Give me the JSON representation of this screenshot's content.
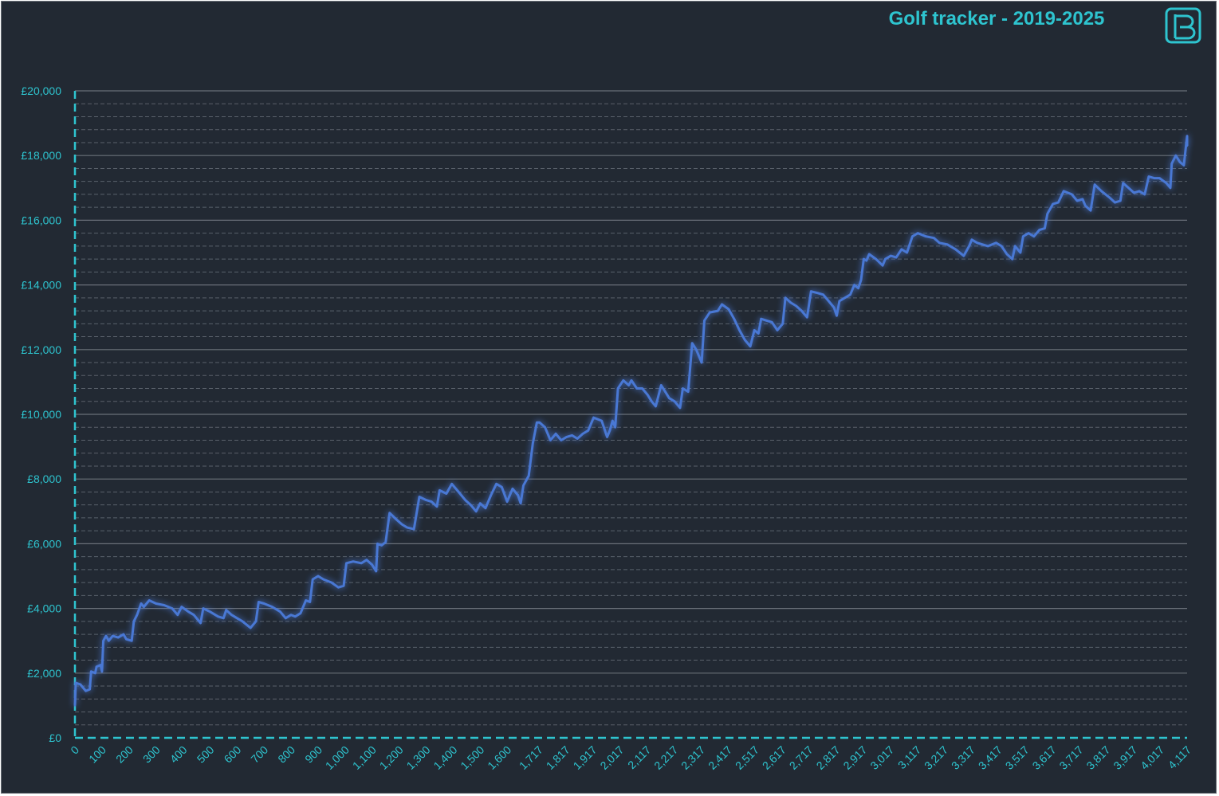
{
  "chart_data": {
    "type": "line",
    "title": "Golf tracker - 2019-2025",
    "xlabel": "",
    "ylabel": "",
    "xlim": [
      0,
      4117
    ],
    "ylim": [
      0,
      20000
    ],
    "grid": true,
    "legend": "none",
    "y_ticks": [
      {
        "value": 0,
        "label": "£0"
      },
      {
        "value": 2000,
        "label": "£2,000"
      },
      {
        "value": 4000,
        "label": "£4,000"
      },
      {
        "value": 6000,
        "label": "£6,000"
      },
      {
        "value": 8000,
        "label": "£8,000"
      },
      {
        "value": 10000,
        "label": "£10,000"
      },
      {
        "value": 12000,
        "label": "£12,000"
      },
      {
        "value": 14000,
        "label": "£14,000"
      },
      {
        "value": 16000,
        "label": "£16,000"
      },
      {
        "value": 18000,
        "label": "£18,000"
      },
      {
        "value": 20000,
        "label": "£20,000"
      }
    ],
    "x_ticks": [
      {
        "value": 0,
        "label": "0"
      },
      {
        "value": 100,
        "label": "100"
      },
      {
        "value": 200,
        "label": "200"
      },
      {
        "value": 300,
        "label": "300"
      },
      {
        "value": 400,
        "label": "400"
      },
      {
        "value": 500,
        "label": "500"
      },
      {
        "value": 600,
        "label": "600"
      },
      {
        "value": 700,
        "label": "700"
      },
      {
        "value": 800,
        "label": "800"
      },
      {
        "value": 900,
        "label": "900"
      },
      {
        "value": 1000,
        "label": "1,000"
      },
      {
        "value": 1100,
        "label": "1,100"
      },
      {
        "value": 1200,
        "label": "1,200"
      },
      {
        "value": 1300,
        "label": "1,300"
      },
      {
        "value": 1400,
        "label": "1,400"
      },
      {
        "value": 1500,
        "label": "1,500"
      },
      {
        "value": 1600,
        "label": "1,600"
      },
      {
        "value": 1717,
        "label": "1,717"
      },
      {
        "value": 1817,
        "label": "1,817"
      },
      {
        "value": 1917,
        "label": "1,917"
      },
      {
        "value": 2017,
        "label": "2,017"
      },
      {
        "value": 2117,
        "label": "2,117"
      },
      {
        "value": 2217,
        "label": "2,217"
      },
      {
        "value": 2317,
        "label": "2,317"
      },
      {
        "value": 2417,
        "label": "2,417"
      },
      {
        "value": 2517,
        "label": "2,517"
      },
      {
        "value": 2617,
        "label": "2,617"
      },
      {
        "value": 2717,
        "label": "2,717"
      },
      {
        "value": 2817,
        "label": "2,817"
      },
      {
        "value": 2917,
        "label": "2,917"
      },
      {
        "value": 3017,
        "label": "3,017"
      },
      {
        "value": 3117,
        "label": "3,117"
      },
      {
        "value": 3217,
        "label": "3,217"
      },
      {
        "value": 3317,
        "label": "3,317"
      },
      {
        "value": 3417,
        "label": "3,417"
      },
      {
        "value": 3517,
        "label": "3,517"
      },
      {
        "value": 3617,
        "label": "3,617"
      },
      {
        "value": 3717,
        "label": "3,717"
      },
      {
        "value": 3817,
        "label": "3,817"
      },
      {
        "value": 3917,
        "label": "3,917"
      },
      {
        "value": 4017,
        "label": "4,017"
      },
      {
        "value": 4117,
        "label": "4,117"
      }
    ],
    "series": [
      {
        "color": "#4a78d4",
        "points": [
          [
            0,
            1000
          ],
          [
            3,
            1700
          ],
          [
            20,
            1650
          ],
          [
            40,
            1450
          ],
          [
            55,
            1500
          ],
          [
            60,
            2050
          ],
          [
            75,
            2000
          ],
          [
            80,
            2200
          ],
          [
            95,
            2250
          ],
          [
            100,
            2050
          ],
          [
            105,
            3000
          ],
          [
            115,
            3150
          ],
          [
            125,
            3000
          ],
          [
            140,
            3150
          ],
          [
            160,
            3100
          ],
          [
            180,
            3200
          ],
          [
            190,
            3050
          ],
          [
            210,
            3000
          ],
          [
            218,
            3600
          ],
          [
            230,
            3800
          ],
          [
            245,
            4150
          ],
          [
            255,
            4050
          ],
          [
            275,
            4250
          ],
          [
            300,
            4150
          ],
          [
            330,
            4100
          ],
          [
            360,
            4000
          ],
          [
            380,
            3800
          ],
          [
            395,
            4050
          ],
          [
            420,
            3900
          ],
          [
            440,
            3800
          ],
          [
            465,
            3550
          ],
          [
            475,
            4000
          ],
          [
            500,
            3900
          ],
          [
            530,
            3750
          ],
          [
            550,
            3700
          ],
          [
            560,
            3950
          ],
          [
            580,
            3800
          ],
          [
            600,
            3700
          ],
          [
            620,
            3600
          ],
          [
            650,
            3400
          ],
          [
            670,
            3600
          ],
          [
            680,
            4200
          ],
          [
            700,
            4150
          ],
          [
            730,
            4050
          ],
          [
            760,
            3900
          ],
          [
            780,
            3700
          ],
          [
            800,
            3800
          ],
          [
            815,
            3750
          ],
          [
            835,
            3850
          ],
          [
            855,
            4250
          ],
          [
            870,
            4200
          ],
          [
            880,
            4900
          ],
          [
            900,
            5000
          ],
          [
            920,
            4900
          ],
          [
            950,
            4800
          ],
          [
            975,
            4650
          ],
          [
            995,
            4700
          ],
          [
            1005,
            5400
          ],
          [
            1030,
            5450
          ],
          [
            1060,
            5400
          ],
          [
            1080,
            5500
          ],
          [
            1100,
            5350
          ],
          [
            1115,
            5150
          ],
          [
            1120,
            6000
          ],
          [
            1135,
            5950
          ],
          [
            1150,
            6050
          ],
          [
            1165,
            6950
          ],
          [
            1190,
            6750
          ],
          [
            1210,
            6600
          ],
          [
            1230,
            6500
          ],
          [
            1255,
            6450
          ],
          [
            1275,
            7450
          ],
          [
            1300,
            7350
          ],
          [
            1320,
            7300
          ],
          [
            1340,
            7150
          ],
          [
            1350,
            7650
          ],
          [
            1375,
            7550
          ],
          [
            1395,
            7850
          ],
          [
            1420,
            7600
          ],
          [
            1445,
            7350
          ],
          [
            1465,
            7200
          ],
          [
            1485,
            7000
          ],
          [
            1500,
            7250
          ],
          [
            1520,
            7100
          ],
          [
            1540,
            7500
          ],
          [
            1560,
            7850
          ],
          [
            1580,
            7750
          ],
          [
            1600,
            7300
          ],
          [
            1620,
            7700
          ],
          [
            1640,
            7500
          ],
          [
            1650,
            7250
          ],
          [
            1660,
            7800
          ],
          [
            1680,
            8100
          ],
          [
            1695,
            9100
          ],
          [
            1710,
            9750
          ],
          [
            1720,
            9750
          ],
          [
            1740,
            9600
          ],
          [
            1760,
            9200
          ],
          [
            1780,
            9400
          ],
          [
            1800,
            9200
          ],
          [
            1820,
            9300
          ],
          [
            1840,
            9350
          ],
          [
            1860,
            9250
          ],
          [
            1880,
            9400
          ],
          [
            1900,
            9500
          ],
          [
            1920,
            9900
          ],
          [
            1950,
            9800
          ],
          [
            1970,
            9300
          ],
          [
            1980,
            9500
          ],
          [
            1990,
            9800
          ],
          [
            2000,
            9600
          ],
          [
            2010,
            10800
          ],
          [
            2030,
            11050
          ],
          [
            2050,
            10900
          ],
          [
            2060,
            11050
          ],
          [
            2080,
            10800
          ],
          [
            2100,
            10800
          ],
          [
            2120,
            10600
          ],
          [
            2135,
            10400
          ],
          [
            2150,
            10250
          ],
          [
            2170,
            10900
          ],
          [
            2185,
            10700
          ],
          [
            2200,
            10500
          ],
          [
            2220,
            10400
          ],
          [
            2240,
            10200
          ],
          [
            2250,
            10800
          ],
          [
            2270,
            10700
          ],
          [
            2285,
            12200
          ],
          [
            2300,
            12000
          ],
          [
            2320,
            11600
          ],
          [
            2330,
            12900
          ],
          [
            2350,
            13150
          ],
          [
            2380,
            13200
          ],
          [
            2395,
            13400
          ],
          [
            2420,
            13250
          ],
          [
            2440,
            12950
          ],
          [
            2460,
            12600
          ],
          [
            2480,
            12300
          ],
          [
            2500,
            12100
          ],
          [
            2515,
            12600
          ],
          [
            2530,
            12500
          ],
          [
            2540,
            12950
          ],
          [
            2560,
            12900
          ],
          [
            2580,
            12850
          ],
          [
            2600,
            12600
          ],
          [
            2620,
            12800
          ],
          [
            2630,
            13600
          ],
          [
            2650,
            13450
          ],
          [
            2670,
            13350
          ],
          [
            2690,
            13200
          ],
          [
            2710,
            13000
          ],
          [
            2725,
            13800
          ],
          [
            2750,
            13750
          ],
          [
            2770,
            13700
          ],
          [
            2790,
            13500
          ],
          [
            2810,
            13300
          ],
          [
            2820,
            13050
          ],
          [
            2830,
            13500
          ],
          [
            2850,
            13600
          ],
          [
            2870,
            13700
          ],
          [
            2885,
            14000
          ],
          [
            2900,
            13900
          ],
          [
            2910,
            14150
          ],
          [
            2920,
            14800
          ],
          [
            2930,
            14750
          ],
          [
            2940,
            14950
          ],
          [
            2965,
            14800
          ],
          [
            2990,
            14600
          ],
          [
            3000,
            14800
          ],
          [
            3020,
            14900
          ],
          [
            3040,
            14850
          ],
          [
            3060,
            15100
          ],
          [
            3080,
            15000
          ],
          [
            3100,
            15500
          ],
          [
            3120,
            15600
          ],
          [
            3150,
            15500
          ],
          [
            3180,
            15450
          ],
          [
            3200,
            15300
          ],
          [
            3230,
            15250
          ],
          [
            3260,
            15100
          ],
          [
            3290,
            14900
          ],
          [
            3310,
            15200
          ],
          [
            3320,
            15400
          ],
          [
            3340,
            15300
          ],
          [
            3380,
            15200
          ],
          [
            3410,
            15300
          ],
          [
            3430,
            15200
          ],
          [
            3450,
            14950
          ],
          [
            3470,
            14800
          ],
          [
            3480,
            15200
          ],
          [
            3500,
            15000
          ],
          [
            3510,
            15500
          ],
          [
            3530,
            15600
          ],
          [
            3550,
            15500
          ],
          [
            3570,
            15700
          ],
          [
            3590,
            15750
          ],
          [
            3600,
            16200
          ],
          [
            3620,
            16500
          ],
          [
            3640,
            16550
          ],
          [
            3660,
            16900
          ],
          [
            3690,
            16800
          ],
          [
            3710,
            16600
          ],
          [
            3730,
            16650
          ],
          [
            3740,
            16450
          ],
          [
            3760,
            16300
          ],
          [
            3775,
            17100
          ],
          [
            3800,
            16900
          ],
          [
            3830,
            16700
          ],
          [
            3850,
            16550
          ],
          [
            3870,
            16600
          ],
          [
            3880,
            17150
          ],
          [
            3900,
            17000
          ],
          [
            3920,
            16850
          ],
          [
            3940,
            16900
          ],
          [
            3960,
            16800
          ],
          [
            3975,
            17350
          ],
          [
            3995,
            17300
          ],
          [
            4015,
            17300
          ],
          [
            4040,
            17150
          ],
          [
            4055,
            17000
          ],
          [
            4060,
            17750
          ],
          [
            4075,
            18000
          ],
          [
            4090,
            17800
          ],
          [
            4105,
            17700
          ],
          [
            4115,
            18450
          ],
          [
            4130,
            18600
          ],
          [
            4150,
            18400
          ],
          [
            4160,
            18300
          ]
        ]
      }
    ]
  }
}
